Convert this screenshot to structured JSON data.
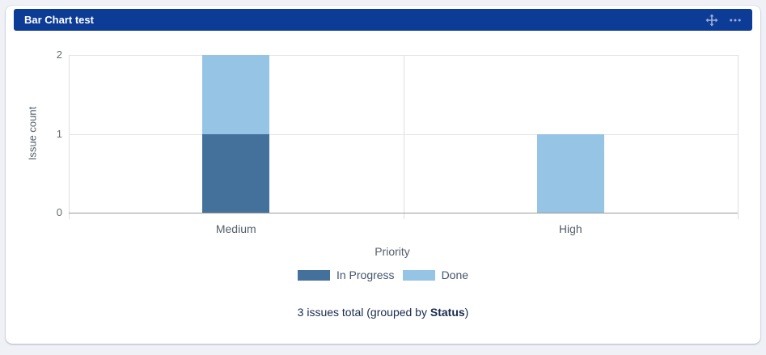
{
  "gadget": {
    "title": "Bar Chart test",
    "header_icons": [
      "move-icon",
      "more-options-icon"
    ],
    "footer": {
      "prefix": "3 issues total (grouped by ",
      "bold": "Status",
      "suffix": ")"
    }
  },
  "colors": {
    "header_bg": "#0d3c97",
    "header_text": "#ffffff",
    "header_icon": "#93a4d6",
    "card_bg": "#ffffff",
    "page_bg": "#f0f1f6",
    "in_progress": "#44719C",
    "done": "#96C4E5",
    "gridline": "#e4e5e7",
    "baseline": "#9b9b9b",
    "footer_text": "#172b4d"
  },
  "chart_data": {
    "type": "bar",
    "stacked": true,
    "categories": [
      "Medium",
      "High"
    ],
    "series": [
      {
        "name": "In Progress",
        "color": "#44719C",
        "values": [
          1,
          0
        ]
      },
      {
        "name": "Done",
        "color": "#96C4E5",
        "values": [
          1,
          1
        ]
      }
    ],
    "title": "",
    "xlabel": "Priority",
    "ylabel": "Issue count",
    "ylim": [
      0,
      2
    ],
    "yticks": [
      0,
      1,
      2
    ],
    "grid": true,
    "legend_position": "bottom",
    "total_label": "3 issues total (grouped by Status)"
  }
}
